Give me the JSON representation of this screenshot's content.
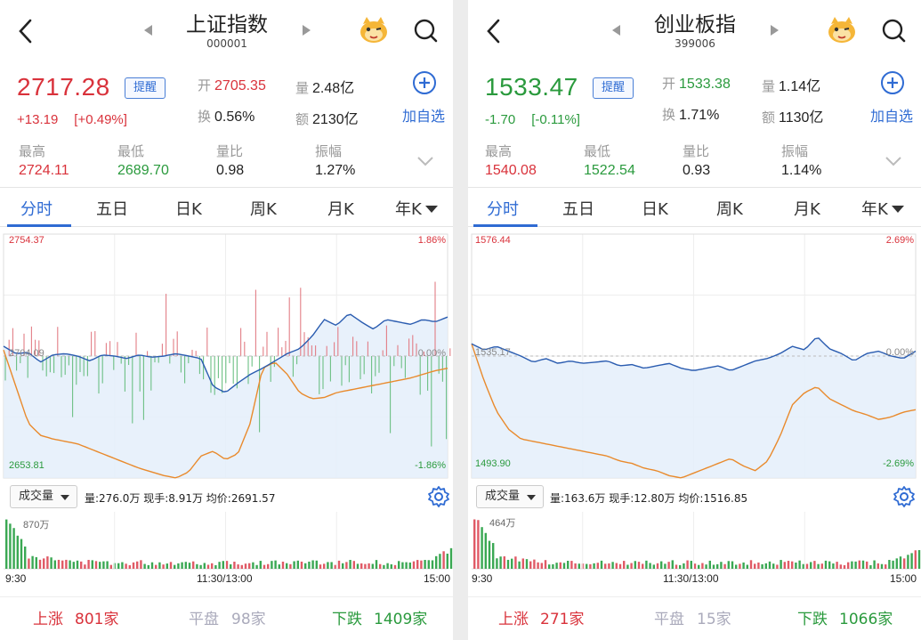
{
  "colors": {
    "up": "#d9323b",
    "down": "#2a9a3d",
    "accent": "#2f6bd3",
    "price_line": "#2a5cb0",
    "avg_line": "#e98a2c"
  },
  "panels": [
    {
      "title": "上证指数",
      "code": "000001",
      "price": "2717.28",
      "price_color": "up",
      "change": "+13.19",
      "change_pct": "[+0.49%]",
      "remind_label": "提醒",
      "add_label": "加自选",
      "open_label": "开",
      "open": "2705.35",
      "volume_label": "量",
      "volume": "2.48亿",
      "turnover_label": "换",
      "turnover": "0.56%",
      "amount_label": "额",
      "amount": "2130亿",
      "high_label": "最高",
      "high": "2724.11",
      "low_label": "最低",
      "low": "2689.70",
      "ratio_label": "量比",
      "ratio": "0.98",
      "amp_label": "振幅",
      "amp": "1.27%",
      "tabs": [
        "分时",
        "五日",
        "日K",
        "周K",
        "月K",
        "年K"
      ],
      "axis": {
        "top": "2754.37",
        "mid": "2704.09",
        "bottom": "2653.81",
        "top_pct": "1.86%",
        "mid_pct": "0.00%",
        "bottom_pct": "-1.86%"
      },
      "vol_dropdown": "成交量",
      "vol_info": "量:276.0万  现手:8.91万  均价:2691.57",
      "vol_max": "870万",
      "time_start": "9:30",
      "time_mid": "11:30/13:00",
      "time_end": "15:00",
      "up_label": "上涨",
      "up_count": "801家",
      "flat_label": "平盘",
      "flat_count": "98家",
      "down_label": "下跌",
      "down_count": "1409家",
      "mascot_icon": "mascot-icon"
    },
    {
      "title": "创业板指",
      "code": "399006",
      "price": "1533.47",
      "price_color": "down",
      "change": "-1.70",
      "change_pct": "[-0.11%]",
      "remind_label": "提醒",
      "add_label": "加自选",
      "open_label": "开",
      "open": "1533.38",
      "volume_label": "量",
      "volume": "1.14亿",
      "turnover_label": "换",
      "turnover": "1.71%",
      "amount_label": "额",
      "amount": "1130亿",
      "high_label": "最高",
      "high": "1540.08",
      "low_label": "最低",
      "low": "1522.54",
      "ratio_label": "量比",
      "ratio": "0.93",
      "amp_label": "振幅",
      "amp": "1.14%",
      "tabs": [
        "分时",
        "五日",
        "日K",
        "周K",
        "月K",
        "年K"
      ],
      "axis": {
        "top": "1576.44",
        "mid": "1535.17",
        "bottom": "1493.90",
        "top_pct": "2.69%",
        "mid_pct": "0.00%",
        "bottom_pct": "-2.69%"
      },
      "vol_dropdown": "成交量",
      "vol_info": "量:163.6万  现手:12.80万  均价:1516.85",
      "vol_max": "464万",
      "time_start": "9:30",
      "time_mid": "11:30/13:00",
      "time_end": "15:00",
      "up_label": "上涨",
      "up_count": "271家",
      "flat_label": "平盘",
      "flat_count": "15家",
      "down_label": "下跌",
      "down_count": "1066家",
      "mascot_icon": "mascot-icon"
    }
  ]
}
